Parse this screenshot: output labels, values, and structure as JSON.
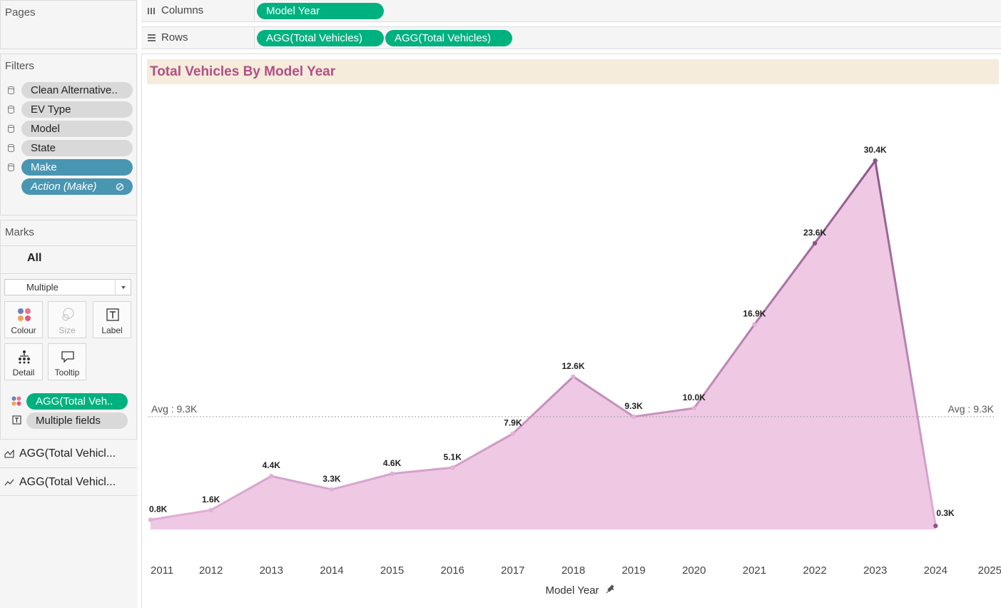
{
  "pages": {
    "title": "Pages"
  },
  "filters": {
    "title": "Filters",
    "items": [
      {
        "label": "Clean Alternative..",
        "style": "gray"
      },
      {
        "label": "EV Type",
        "style": "gray"
      },
      {
        "label": "Model",
        "style": "gray"
      },
      {
        "label": "State",
        "style": "gray"
      },
      {
        "label": "Make",
        "style": "blue"
      },
      {
        "label": "Action (Make)",
        "style": "blue-italic"
      }
    ]
  },
  "marks": {
    "title": "Marks",
    "all_label": "All",
    "mark_type": "Multiple",
    "buttons": {
      "colour": "Colour",
      "size": "Size",
      "label": "Label",
      "detail": "Detail",
      "tooltip": "Tooltip"
    },
    "fields": [
      {
        "label": "AGG(Total Veh..",
        "type": "colour"
      },
      {
        "label": "Multiple fields",
        "type": "label"
      }
    ],
    "layers": [
      {
        "label": "AGG(Total Vehicl...",
        "icon": "area-chart-icon"
      },
      {
        "label": "AGG(Total Vehicl...",
        "icon": "line-chart-icon"
      }
    ]
  },
  "shelves": {
    "columns": {
      "label": "Columns",
      "pills": [
        "Model Year"
      ]
    },
    "rows": {
      "label": "Rows",
      "pills": [
        "AGG(Total Vehicles)",
        "AGG(Total Vehicles)"
      ]
    }
  },
  "colors": {
    "area_fill": "#efc8e4",
    "line_light": "#e2b0d6",
    "line_dark": "#8c5487",
    "title_text": "#b24f86",
    "title_bg": "#f5ecdc",
    "pill_green": "#00b180",
    "pill_blue": "#4996b2",
    "pill_gray": "#d9d9d9"
  },
  "chart_data": {
    "type": "area",
    "title": "Total Vehicles By Model Year",
    "xlabel": "Model Year",
    "ylabel": "",
    "x": [
      2011,
      2012,
      2013,
      2014,
      2015,
      2016,
      2017,
      2018,
      2019,
      2020,
      2021,
      2022,
      2023,
      2024
    ],
    "x_ticks": [
      "2011",
      "2012",
      "2013",
      "2014",
      "2015",
      "2016",
      "2017",
      "2018",
      "2019",
      "2020",
      "2021",
      "2022",
      "2023",
      "2024",
      "2025"
    ],
    "values": [
      800,
      1600,
      4400,
      3300,
      4600,
      5100,
      7900,
      12600,
      9300,
      10000,
      16900,
      23600,
      30400,
      300
    ],
    "data_labels": [
      "0.8K",
      "1.6K",
      "4.4K",
      "3.3K",
      "4.6K",
      "5.1K",
      "7.9K",
      "12.6K",
      "9.3K",
      "10.0K",
      "16.9K",
      "23.6K",
      "30.4K",
      "0.3K"
    ],
    "ylim": [
      0,
      36000
    ],
    "reference_line": {
      "value": 9300,
      "label": "Avg : 9.3K"
    },
    "grid": false,
    "legend": "none"
  }
}
